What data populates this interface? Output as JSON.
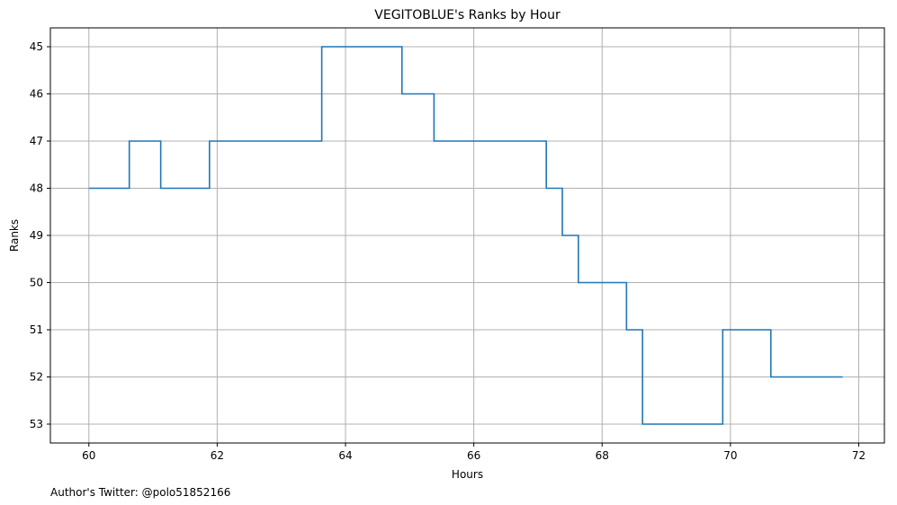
{
  "chart_data": {
    "type": "line",
    "step": true,
    "title": "VEGITOBLUE's Ranks by Hour",
    "xlabel": "Hours",
    "ylabel": "Ranks",
    "xlim": [
      59.4,
      72.4
    ],
    "ylim": [
      53.4,
      44.6
    ],
    "y_inverted": true,
    "xticks": [
      60,
      62,
      64,
      66,
      68,
      70,
      72
    ],
    "yticks": [
      45,
      46,
      47,
      48,
      49,
      50,
      51,
      52,
      53
    ],
    "grid": true,
    "line_color": "#1f77b4",
    "series": [
      {
        "x": [
          60.0,
          60.63,
          61.12,
          61.88,
          63.63,
          64.88,
          65.38,
          67.13,
          67.38,
          67.63,
          68.38,
          68.63,
          69.88,
          70.63,
          71.75
        ],
        "y": [
          48,
          47,
          48,
          47,
          45,
          46,
          47,
          48,
          49,
          50,
          51,
          53,
          51,
          52,
          52
        ]
      }
    ]
  },
  "footnote": "Author's Twitter: @polo51852166"
}
